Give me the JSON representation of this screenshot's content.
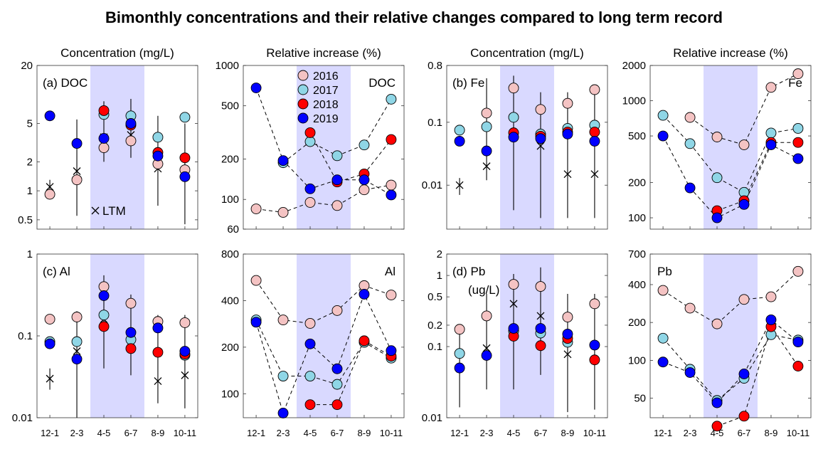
{
  "figure_title": "Bimonthly concentrations and their relative changes compared to long term record",
  "legend": {
    "years": [
      "2016",
      "2017",
      "2018",
      "2019"
    ],
    "colors": [
      "#f4c3c3",
      "#8fd6e6",
      "#ff0000",
      "#0000ff"
    ],
    "ltm_label": "LTM",
    "ltm_symbol": "×"
  },
  "shared": {
    "x_categories": [
      "12-1",
      "2-3",
      "4-5",
      "6-7",
      "8-9",
      "10-11"
    ],
    "shaded_categories": [
      "4-5",
      "6-7"
    ],
    "shade_color": "#d9d9ff"
  },
  "chart_data": [
    {
      "id": "doc_conc",
      "type": "scatter",
      "title": "Concentration (mg/L)",
      "panel_label": "(a) DOC",
      "scale": "log",
      "ylim": [
        0.4,
        20
      ],
      "yticks": [
        0.5,
        1,
        2,
        5,
        20
      ],
      "ytick_labels": [
        "0.5",
        "1",
        "2",
        "5",
        "20"
      ],
      "categories": [
        "12-1",
        "2-3",
        "4-5",
        "6-7",
        "8-9",
        "10-11"
      ],
      "ltm": [
        1.1,
        1.6,
        3.6,
        3.8,
        1.7,
        1.5
      ],
      "error_bars": [
        [
          0.9,
          1.3
        ],
        [
          0.55,
          5.5
        ],
        [
          2.0,
          8.5
        ],
        [
          2.2,
          9.0
        ],
        [
          0.7,
          6.0
        ],
        [
          0.45,
          5.0
        ]
      ],
      "series": [
        {
          "name": "2016",
          "values": [
            0.92,
            1.3,
            2.8,
            3.3,
            1.9,
            1.65
          ]
        },
        {
          "name": "2017",
          "values": [
            null,
            null,
            6.2,
            6.0,
            3.6,
            5.8
          ]
        },
        {
          "name": "2018",
          "values": [
            null,
            null,
            6.8,
            4.8,
            2.5,
            2.2
          ]
        },
        {
          "name": "2019",
          "values": [
            6.0,
            3.1,
            3.5,
            5.0,
            2.3,
            1.4
          ]
        }
      ]
    },
    {
      "id": "doc_rel",
      "type": "line",
      "title": "Relative increase (%)",
      "panel_label": "DOC",
      "scale": "log",
      "ylim": [
        60,
        1000
      ],
      "yticks": [
        60,
        100,
        200,
        500,
        1000
      ],
      "ytick_labels": [
        "60",
        "100",
        "200",
        "500",
        "1000"
      ],
      "categories": [
        "12-1",
        "2-3",
        "4-5",
        "6-7",
        "8-9",
        "10-11"
      ],
      "series": [
        {
          "name": "2016",
          "values": [
            85,
            80,
            95,
            90,
            118,
            128
          ]
        },
        {
          "name": "2017",
          "values": [
            null,
            188,
            270,
            212,
            255,
            560
          ]
        },
        {
          "name": "2018",
          "values": [
            null,
            null,
            315,
            135,
            155,
            280
          ]
        },
        {
          "name": "2019",
          "values": [
            680,
            195,
            120,
            140,
            140,
            108
          ]
        }
      ]
    },
    {
      "id": "fe_conc",
      "type": "scatter",
      "title": "Concentration (mg/L)",
      "panel_label": "(b) Fe",
      "scale": "log",
      "ylim": [
        0.002,
        0.8
      ],
      "yticks": [
        0.01,
        0.1,
        0.8
      ],
      "ytick_labels": [
        "0.01",
        "0.1",
        "0.8"
      ],
      "categories": [
        "12-1",
        "2-3",
        "4-5",
        "6-7",
        "8-9",
        "10-11"
      ],
      "ltm": [
        0.01,
        0.02,
        0.06,
        0.042,
        0.015,
        0.015
      ],
      "error_bars": [
        [
          0.007,
          0.013
        ],
        [
          0.012,
          0.5
        ],
        [
          0.004,
          0.55
        ],
        [
          0.003,
          0.3
        ],
        [
          0.003,
          0.3
        ],
        [
          0.003,
          0.35
        ]
      ],
      "series": [
        {
          "name": "2016",
          "values": [
            null,
            0.14,
            0.35,
            0.16,
            0.2,
            0.33
          ]
        },
        {
          "name": "2017",
          "values": [
            0.075,
            0.085,
            0.12,
            0.065,
            0.08,
            0.09
          ]
        },
        {
          "name": "2018",
          "values": [
            null,
            null,
            0.068,
            0.06,
            0.07,
            0.07
          ]
        },
        {
          "name": "2019",
          "values": [
            0.05,
            0.035,
            0.058,
            0.055,
            0.065,
            0.05
          ]
        }
      ]
    },
    {
      "id": "fe_rel",
      "type": "line",
      "title": "Relative increase (%)",
      "panel_label": "Fe",
      "scale": "log",
      "ylim": [
        80,
        2000
      ],
      "yticks": [
        100,
        200,
        500,
        1000,
        2000
      ],
      "ytick_labels": [
        "100",
        "200",
        "500",
        "1000",
        "2000"
      ],
      "categories": [
        "12-1",
        "2-3",
        "4-5",
        "6-7",
        "8-9",
        "10-11"
      ],
      "series": [
        {
          "name": "2016",
          "values": [
            null,
            720,
            490,
            420,
            1300,
            1700
          ]
        },
        {
          "name": "2017",
          "values": [
            750,
            430,
            220,
            165,
            530,
            580
          ]
        },
        {
          "name": "2018",
          "values": [
            null,
            null,
            115,
            140,
            440,
            440
          ]
        },
        {
          "name": "2019",
          "values": [
            500,
            180,
            100,
            130,
            420,
            320
          ]
        }
      ]
    },
    {
      "id": "al_conc",
      "type": "scatter",
      "title": "",
      "panel_label": "(c) Al",
      "scale": "log",
      "ylim": [
        0.01,
        1
      ],
      "yticks": [
        0.01,
        0.1,
        1
      ],
      "ytick_labels": [
        "0.01",
        "0.1",
        "1"
      ],
      "categories": [
        "12-1",
        "2-3",
        "4-5",
        "6-7",
        "8-9",
        "10-11"
      ],
      "ltm": [
        0.03,
        0.065,
        0.16,
        0.085,
        0.028,
        0.033
      ],
      "error_bars": [
        [
          0.022,
          0.04
        ],
        [
          0.01,
          0.2
        ],
        [
          0.04,
          0.55
        ],
        [
          0.033,
          0.32
        ],
        [
          0.015,
          0.18
        ],
        [
          0.013,
          0.18
        ]
      ],
      "series": [
        {
          "name": "2016",
          "values": [
            0.16,
            0.17,
            0.4,
            0.25,
            0.15,
            0.145
          ]
        },
        {
          "name": "2017",
          "values": [
            0.085,
            0.085,
            0.18,
            0.09,
            null,
            0.058
          ]
        },
        {
          "name": "2018",
          "values": [
            null,
            null,
            0.13,
            0.07,
            0.063,
            0.06
          ]
        },
        {
          "name": "2019",
          "values": [
            0.08,
            0.052,
            0.31,
            0.11,
            0.125,
            0.065
          ]
        }
      ]
    },
    {
      "id": "al_rel",
      "type": "line",
      "title": "",
      "panel_label": "Al",
      "scale": "log",
      "ylim": [
        70,
        800
      ],
      "yticks": [
        100,
        200,
        400,
        800
      ],
      "ytick_labels": [
        "100",
        "200",
        "400",
        "800"
      ],
      "categories": [
        "12-1",
        "2-3",
        "4-5",
        "6-7",
        "8-9",
        "10-11"
      ],
      "series": [
        {
          "name": "2016",
          "values": [
            540,
            300,
            285,
            345,
            500,
            435
          ]
        },
        {
          "name": "2017",
          "values": [
            300,
            130,
            130,
            115,
            215,
            170
          ]
        },
        {
          "name": "2018",
          "values": [
            null,
            null,
            85,
            85,
            220,
            175
          ]
        },
        {
          "name": "2019",
          "values": [
            290,
            75,
            210,
            145,
            440,
            190
          ]
        }
      ]
    },
    {
      "id": "pb_conc",
      "type": "scatter",
      "title": "",
      "panel_label": "(d) Pb",
      "panel_sublabel": "(ug/L)",
      "scale": "log",
      "ylim": [
        0.01,
        2
      ],
      "yticks": [
        0.01,
        0.1,
        0.2,
        0.5,
        1,
        2
      ],
      "ytick_labels": [
        "0.01",
        "0.1",
        "0.2",
        "0.5",
        "1",
        "2"
      ],
      "categories": [
        "12-1",
        "2-3",
        "4-5",
        "6-7",
        "8-9",
        "10-11"
      ],
      "ltm": [
        null,
        0.095,
        0.4,
        0.27,
        0.078,
        null
      ],
      "error_bars": [
        [
          0.014,
          0.18
        ],
        [
          0.025,
          0.55
        ],
        [
          0.025,
          1.05
        ],
        [
          0.04,
          1.3
        ],
        [
          0.012,
          0.55
        ],
        [
          0.013,
          0.55
        ]
      ],
      "series": [
        {
          "name": "2016",
          "values": [
            0.175,
            0.27,
            0.75,
            0.7,
            0.26,
            0.4
          ]
        },
        {
          "name": "2017",
          "values": [
            0.08,
            null,
            0.165,
            0.155,
            0.115,
            null
          ]
        },
        {
          "name": "2018",
          "values": [
            null,
            null,
            0.14,
            0.103,
            0.13,
            0.065
          ]
        },
        {
          "name": "2019",
          "values": [
            0.05,
            0.075,
            0.18,
            0.18,
            0.15,
            0.105
          ]
        }
      ]
    },
    {
      "id": "pb_rel",
      "type": "line",
      "title": "",
      "panel_label": "Pb",
      "scale": "log",
      "ylim": [
        35,
        700
      ],
      "yticks": [
        50,
        100,
        200,
        400,
        700
      ],
      "ytick_labels": [
        "50",
        "100",
        "200",
        "400",
        "700"
      ],
      "categories": [
        "12-1",
        "2-3",
        "4-5",
        "6-7",
        "8-9",
        "10-11"
      ],
      "series": [
        {
          "name": "2016",
          "values": [
            360,
            260,
            195,
            305,
            320,
            510
          ]
        },
        {
          "name": "2017",
          "values": [
            150,
            85,
            48,
            72,
            160,
            145
          ]
        },
        {
          "name": "2018",
          "values": [
            null,
            null,
            30,
            36,
            185,
            90
          ]
        },
        {
          "name": "2019",
          "values": [
            97,
            80,
            46,
            78,
            210,
            140
          ]
        }
      ]
    }
  ]
}
